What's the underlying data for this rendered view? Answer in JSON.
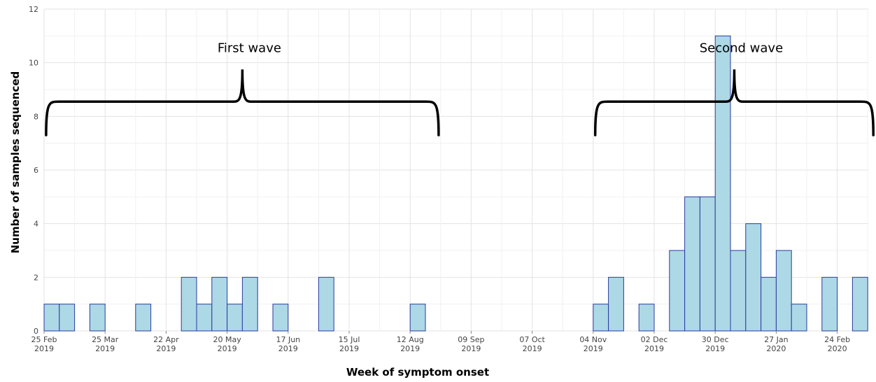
{
  "chart_data": {
    "type": "bar",
    "title": "",
    "xlabel": "Week of symptom onset",
    "ylabel": "Number of samples sequenced",
    "ylim": [
      0,
      12
    ],
    "yticks": [
      0,
      2,
      4,
      6,
      8,
      10,
      12
    ],
    "grid": true,
    "x_tick_labels": [
      {
        "week": 0,
        "date": "25 Feb",
        "year": "2019"
      },
      {
        "week": 4,
        "date": "25 Mar",
        "year": "2019"
      },
      {
        "week": 8,
        "date": "22 Apr",
        "year": "2019"
      },
      {
        "week": 12,
        "date": "20 May",
        "year": "2019"
      },
      {
        "week": 16,
        "date": "17 Jun",
        "year": "2019"
      },
      {
        "week": 20,
        "date": "15 Jul",
        "year": "2019"
      },
      {
        "week": 24,
        "date": "12 Aug",
        "year": "2019"
      },
      {
        "week": 28,
        "date": "09 Sep",
        "year": "2019"
      },
      {
        "week": 32,
        "date": "07 Oct",
        "year": "2019"
      },
      {
        "week": 36,
        "date": "04 Nov",
        "year": "2019"
      },
      {
        "week": 40,
        "date": "02 Dec",
        "year": "2019"
      },
      {
        "week": 44,
        "date": "30 Dec",
        "year": "2019"
      },
      {
        "week": 48,
        "date": "27 Jan",
        "year": "2020"
      },
      {
        "week": 52,
        "date": "24 Feb",
        "year": "2020"
      }
    ],
    "bars": [
      {
        "week": 0,
        "value": 1
      },
      {
        "week": 1,
        "value": 1
      },
      {
        "week": 3,
        "value": 1
      },
      {
        "week": 6,
        "value": 1
      },
      {
        "week": 9,
        "value": 2
      },
      {
        "week": 10,
        "value": 1
      },
      {
        "week": 11,
        "value": 2
      },
      {
        "week": 12,
        "value": 1
      },
      {
        "week": 13,
        "value": 2
      },
      {
        "week": 15,
        "value": 1
      },
      {
        "week": 18,
        "value": 2
      },
      {
        "week": 24,
        "value": 1
      },
      {
        "week": 36,
        "value": 1
      },
      {
        "week": 37,
        "value": 2
      },
      {
        "week": 39,
        "value": 1
      },
      {
        "week": 41,
        "value": 3
      },
      {
        "week": 42,
        "value": 5
      },
      {
        "week": 43,
        "value": 5
      },
      {
        "week": 44,
        "value": 11
      },
      {
        "week": 45,
        "value": 3
      },
      {
        "week": 46,
        "value": 4
      },
      {
        "week": 47,
        "value": 2
      },
      {
        "week": 48,
        "value": 3
      },
      {
        "week": 49,
        "value": 1
      },
      {
        "week": 51,
        "value": 2
      },
      {
        "week": 53,
        "value": 2
      }
    ],
    "bar_fill": "#add8e6",
    "bar_stroke": "#2b3aa0",
    "annotations": [
      {
        "label": "First wave",
        "week_start": 0.5,
        "week_end": 25.5
      },
      {
        "label": "Second wave",
        "week_start": 36.5,
        "week_end": 54.0
      }
    ]
  }
}
